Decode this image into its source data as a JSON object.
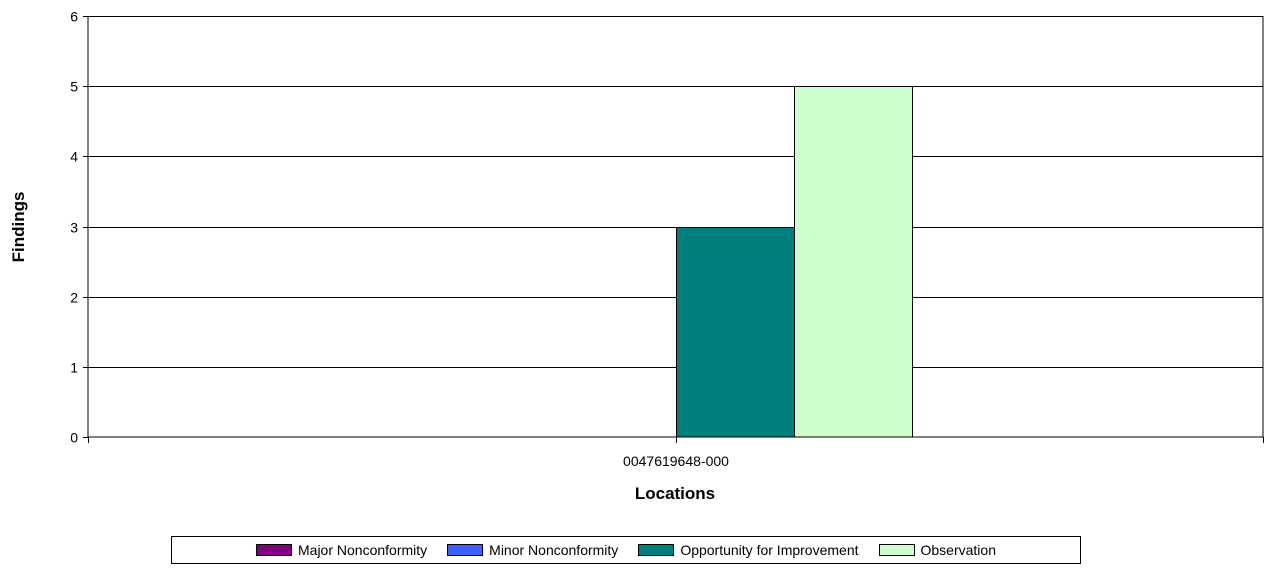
{
  "chart_data": {
    "type": "bar",
    "title": "",
    "xlabel": "Locations",
    "ylabel": "Findings",
    "categories": [
      "0047619648-000"
    ],
    "yticks": [
      "0",
      "1",
      "2",
      "3",
      "4",
      "5",
      "6"
    ],
    "ylim": [
      0,
      6
    ],
    "grid": true,
    "legend_position": "bottom",
    "series": [
      {
        "name": "Major Nonconformity",
        "color": "#7f007f",
        "values": [
          0
        ]
      },
      {
        "name": "Minor Nonconformity",
        "color": "#3f5fff",
        "values": [
          0
        ]
      },
      {
        "name": "Opportunity for Improvement",
        "color": "#007f7f",
        "values": [
          3
        ]
      },
      {
        "name": "Observation",
        "color": "#ccffcc",
        "values": [
          5
        ]
      }
    ]
  }
}
